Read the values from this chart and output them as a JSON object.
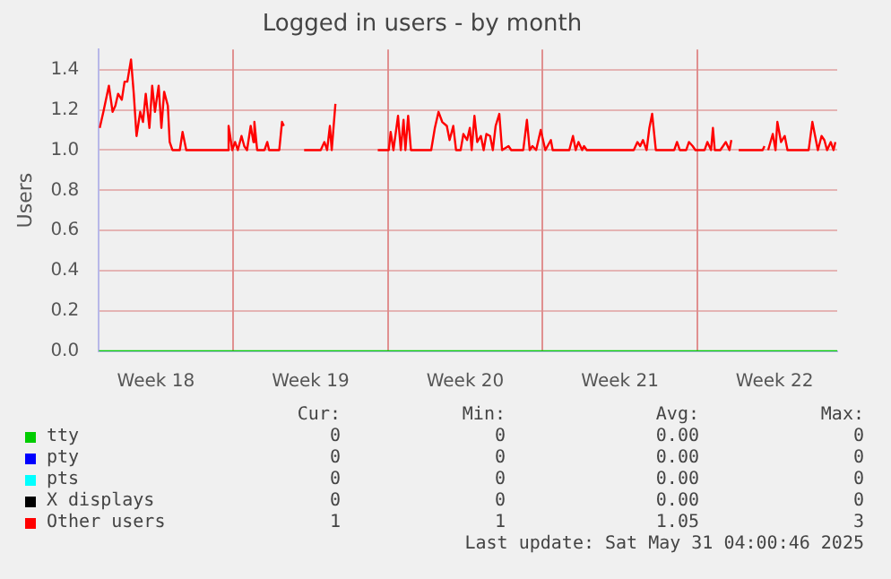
{
  "chart_data": {
    "type": "line",
    "title": "Logged in users - by month",
    "ylabel": "Users",
    "xlim": [
      "2025-04-29T00:00",
      "2025-06-01T10:00"
    ],
    "ylim": [
      0,
      1.5
    ],
    "xticks": [
      {
        "value": "2025-05-01T14:00",
        "label": "Week 18"
      },
      {
        "value": "2025-05-05T02:00",
        "label": null
      },
      {
        "value": "2025-05-08T14:00",
        "label": "Week 19"
      },
      {
        "value": "2025-05-12T02:00",
        "label": null
      },
      {
        "value": "2025-05-15T14:00",
        "label": "Week 20"
      },
      {
        "value": "2025-05-19T02:00",
        "label": null
      },
      {
        "value": "2025-05-22T14:00",
        "label": "Week 21"
      },
      {
        "value": "2025-05-26T02:00",
        "label": null
      },
      {
        "value": "2025-05-29T14:00",
        "label": "Week 22"
      }
    ],
    "yticks": [
      {
        "value": 0,
        "label": "0.0"
      },
      {
        "value": 0.2,
        "label": "0.2"
      },
      {
        "value": 0.4,
        "label": "0.4"
      },
      {
        "value": 0.6,
        "label": "0.6"
      },
      {
        "value": 0.8,
        "label": "0.8"
      },
      {
        "value": 1,
        "label": "1.0"
      },
      {
        "value": 1.2,
        "label": "1.2"
      },
      {
        "value": 1.4,
        "label": "1.4"
      }
    ],
    "grid": true,
    "legend": "bottom",
    "series": [
      {
        "name": "tty",
        "color": "#00cc00",
        "x": [
          "2025-04-29T00:00",
          "2025-06-01T10:00"
        ],
        "values": [
          0,
          0
        ]
      },
      {
        "name": "pty",
        "color": "#0000ff"
      },
      {
        "name": "pts",
        "color": "#00ffff"
      },
      {
        "name": "X displays",
        "color": "#000000"
      },
      {
        "name": "Other users",
        "color": "#ff0000",
        "x": [
          "2025-04-29T01:00",
          "2025-04-29T05:00",
          "2025-04-29T11:00",
          "2025-04-29T15:00",
          "2025-04-29T18:00",
          "2025-04-29T21:00",
          "2025-04-30T01:00",
          "2025-04-30T04:00",
          "2025-04-30T07:00",
          "2025-04-30T11:00",
          "2025-04-30T14:00",
          "2025-04-30T17:00",
          "2025-04-30T21:00",
          "2025-05-01T00:00",
          "2025-05-01T03:00",
          "2025-05-01T07:00",
          "2025-05-01T10:00",
          "2025-05-01T13:00",
          "2025-05-01T17:00",
          "2025-05-01T20:00",
          "2025-05-01T23:00",
          "2025-05-02T03:00",
          "2025-05-02T05:00",
          "2025-05-02T08:00",
          "2025-05-02T16:00",
          "2025-05-02T19:00",
          "2025-05-02T23:00",
          "2025-05-04T20:00",
          "2025-05-04T21:00",
          "2025-05-05T01:00",
          "2025-05-05T04:00",
          "2025-05-05T07:00",
          "2025-05-05T11:00",
          "2025-05-05T14:00",
          "2025-05-05T17:00",
          "2025-05-05T21:00",
          "2025-05-06T00:00",
          "2025-05-06T01:00",
          "2025-05-06T04:00",
          "2025-05-06T12:00",
          "2025-05-06T15:00",
          "2025-05-06T17:00",
          "2025-05-07T04:00",
          "2025-05-07T07:00",
          "2025-05-07T09:00",
          "2025-05-07T22:00",
          "2025-05-08T07:00",
          "2025-05-09T01:00",
          "2025-05-09T05:00",
          "2025-05-09T08:00",
          "2025-05-09T11:00",
          "2025-05-09T13:00",
          "2025-05-09T17:00",
          "2025-05-10T12:00",
          "2025-05-11T15:00",
          "2025-05-12T03:00",
          "2025-05-12T05:00",
          "2025-05-12T08:00",
          "2025-05-12T13:00",
          "2025-05-12T16:00",
          "2025-05-12T19:00",
          "2025-05-12T21:00",
          "2025-05-13T00:00",
          "2025-05-13T03:00",
          "2025-05-14T01:00",
          "2025-05-14T05:00",
          "2025-05-14T09:00",
          "2025-05-14T13:00",
          "2025-05-14T18:00",
          "2025-05-14T21:00",
          "2025-05-15T01:00",
          "2025-05-15T04:00",
          "2025-05-15T09:00",
          "2025-05-15T12:00",
          "2025-05-15T16:00",
          "2025-05-15T19:00",
          "2025-05-15T21:00",
          "2025-05-16T00:00",
          "2025-05-16T03:00",
          "2025-05-16T07:00",
          "2025-05-16T10:00",
          "2025-05-16T13:00",
          "2025-05-16T17:00",
          "2025-05-16T20:00",
          "2025-05-16T23:00",
          "2025-05-17T03:00",
          "2025-05-17T06:00",
          "2025-05-17T13:00",
          "2025-05-17T16:00",
          "2025-05-18T05:00",
          "2025-05-18T09:00",
          "2025-05-18T12:00",
          "2025-05-18T15:00",
          "2025-05-18T19:00",
          "2025-05-19T00:00",
          "2025-05-19T05:00",
          "2025-05-19T11:00",
          "2025-05-19T13:00",
          "2025-05-20T07:00",
          "2025-05-20T11:00",
          "2025-05-20T14:00",
          "2025-05-20T17:00",
          "2025-05-20T21:00",
          "2025-05-20T23:00",
          "2025-05-21T02:00",
          "2025-05-23T05:00",
          "2025-05-23T09:00",
          "2025-05-23T12:00",
          "2025-05-23T15:00",
          "2025-05-23T19:00",
          "2025-05-23T22:00",
          "2025-05-24T01:00",
          "2025-05-24T05:00",
          "2025-05-25T01:00",
          "2025-05-25T04:00",
          "2025-05-25T07:00",
          "2025-05-25T14:00",
          "2025-05-25T17:00",
          "2025-05-25T21:00",
          "2025-05-26T00:00",
          "2025-05-26T10:00",
          "2025-05-26T13:00",
          "2025-05-26T17:00",
          "2025-05-26T19:00",
          "2025-05-26T21:00",
          "2025-05-27T03:00",
          "2025-05-27T09:00",
          "2025-05-27T13:00",
          "2025-05-27T15:00",
          "2025-05-27T18:00",
          "2025-05-27T23:00",
          "2025-05-29T01:00",
          "2025-05-29T03:00",
          "2025-05-29T05:00",
          "2025-05-29T07:00",
          "2025-05-29T12:00",
          "2025-05-29T15:00",
          "2025-05-29T17:00",
          "2025-05-29T21:00",
          "2025-05-30T01:00",
          "2025-05-30T04:00",
          "2025-05-31T03:00",
          "2025-05-31T07:00",
          "2025-05-31T10:00",
          "2025-05-31T13:00",
          "2025-05-31T17:00",
          "2025-05-31T20:00",
          "2025-05-31T23:00",
          "2025-06-01T03:00",
          "2025-06-01T06:00",
          "2025-06-01T08:00"
        ],
        "values": [
          1.11,
          1.19,
          1.32,
          1.19,
          1.22,
          1.28,
          1.25,
          1.34,
          1.34,
          1.45,
          1.28,
          1.07,
          1.19,
          1.14,
          1.28,
          1.11,
          1.32,
          1.19,
          1.32,
          1.11,
          1.29,
          1.22,
          1.04,
          1,
          1,
          1.09,
          1,
          1,
          1.12,
          1,
          1.04,
          1,
          1.07,
          1.02,
          1,
          1.12,
          1.04,
          1.14,
          1,
          1,
          1.04,
          1,
          1,
          1.14,
          1.12,
          null,
          1,
          1,
          1.04,
          1,
          1.12,
          1,
          1.23,
          null,
          1,
          1,
          1.09,
          1,
          1.17,
          1,
          1.15,
          1,
          1.17,
          1,
          1,
          1.11,
          1.19,
          1.14,
          1.12,
          1.05,
          1.12,
          1,
          1,
          1.08,
          1.05,
          1.11,
          1,
          1.17,
          1.04,
          1.07,
          1,
          1.08,
          1.07,
          1,
          1.12,
          1.18,
          1,
          1.02,
          1,
          1,
          1.15,
          1,
          1.02,
          1,
          1.1,
          1,
          1.05,
          1,
          1,
          1.07,
          1,
          1.04,
          1,
          1.02,
          1,
          1,
          1.04,
          1.02,
          1.05,
          1,
          1.11,
          1.18,
          1,
          1,
          1.04,
          1,
          1,
          1.04,
          1.02,
          1,
          1,
          1.04,
          1,
          1.11,
          1,
          1,
          1.04,
          1,
          1.05,
          null,
          1,
          1,
          1.02,
          null,
          1,
          1.08,
          1,
          1.14,
          1.04,
          1.07,
          1,
          1,
          1.14,
          1.07,
          1,
          1.07,
          1.05,
          1,
          1.04,
          1,
          1.04
        ]
      }
    ],
    "annotations": [
      "Cur:",
      "Min:",
      "Avg:",
      "Max:",
      "0",
      "0",
      "0.00",
      "0",
      "0",
      "0",
      "0.00",
      "0",
      "0",
      "0",
      "0.00",
      "0",
      "0",
      "0",
      "0.00",
      "0",
      "1",
      "1",
      "1.05",
      "3",
      "Last update: Sat May 31 04:00:46 2025"
    ]
  }
}
